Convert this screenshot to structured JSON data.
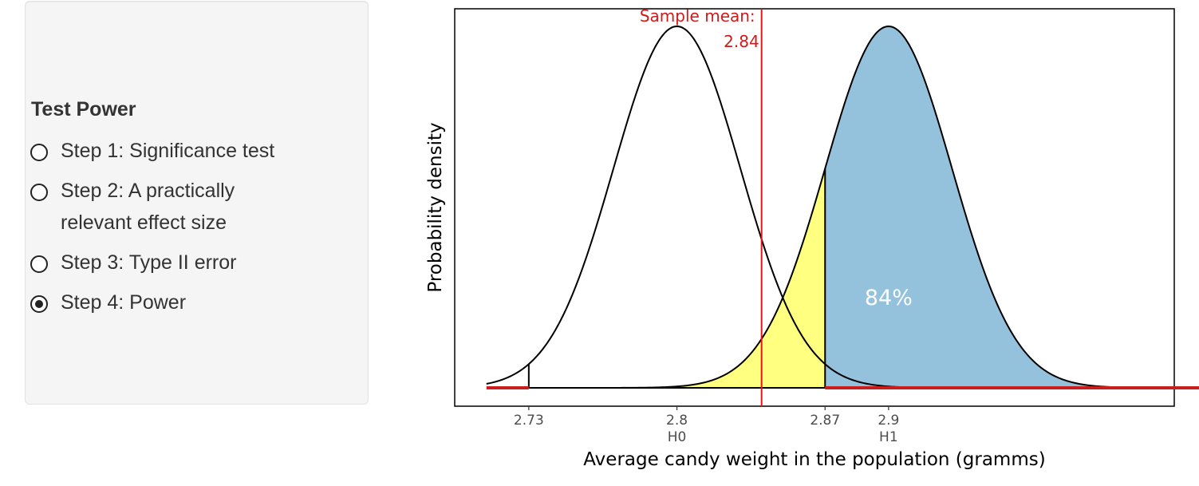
{
  "sidebar": {
    "title": "Test Power",
    "options": [
      {
        "label": "Step 1: Significance test",
        "selected": false
      },
      {
        "label": "Step 2: A practically relevant effect size",
        "selected": false
      },
      {
        "label": "Step 3: Type II error",
        "selected": false
      },
      {
        "label": "Step 4: Power",
        "selected": true
      }
    ]
  },
  "chart_data": {
    "type": "area",
    "xlabel": "Average candy weight in the population (gramms)",
    "ylabel": "Probability density",
    "xlim": [
      2.695,
      3.035
    ],
    "x_ticks": [
      {
        "value": 2.73,
        "label": "2.73",
        "sublabel": ""
      },
      {
        "value": 2.8,
        "label": "2.8",
        "sublabel": "H0"
      },
      {
        "value": 2.87,
        "label": "2.87",
        "sublabel": ""
      },
      {
        "value": 2.9,
        "label": "2.9",
        "sublabel": "H1"
      }
    ],
    "distributions": [
      {
        "mean": 2.8,
        "sd": 0.03,
        "range": [
          2.71,
          2.96
        ],
        "label": "H0"
      },
      {
        "mean": 2.9,
        "sd": 0.03,
        "range": [
          2.74,
          3.09
        ],
        "label": "H1"
      }
    ],
    "critical_values": [
      2.73,
      2.87
    ],
    "rejection_regions": [
      [
        2.71,
        2.73
      ],
      [
        2.87,
        3.09
      ]
    ],
    "type2_region": [
      2.73,
      2.87
    ],
    "power_region": [
      2.87,
      3.09
    ],
    "power_label": "84%",
    "sample_mean": 2.84,
    "sample_mean_label_line1": "Sample mean:",
    "sample_mean_label_line2": "2.84",
    "grid": false,
    "colors": {
      "type2_fill": "#ffff80",
      "power_fill": "#94c1dc",
      "rejection_line": "#c81e1e",
      "sample_line": "#e01818",
      "sample_text": "#d11a1a",
      "curve": "#000000",
      "power_text": "#ffffff"
    }
  }
}
